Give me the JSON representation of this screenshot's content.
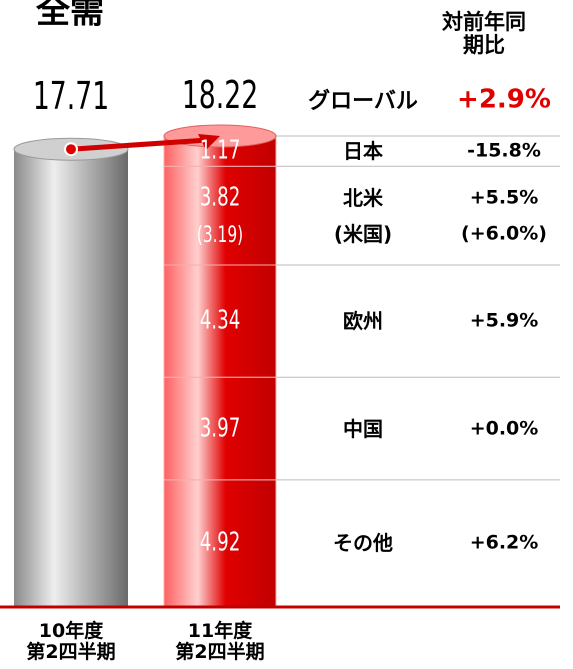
{
  "chart_data": {
    "type": "bar",
    "title": "全需",
    "change_header": "対前年同期比",
    "categories": [
      "10年度\n第2四半期",
      "11年度\n第2四半期"
    ],
    "totals": [
      17.71,
      18.22
    ],
    "total_colors": [
      "#a8a8a8",
      "#e00000"
    ],
    "global": {
      "name": "グローバル",
      "change": "+2.9%"
    },
    "segments": [
      {
        "name": "日本",
        "value": 1.17,
        "change": "-15.8%"
      },
      {
        "name": "北米",
        "value": 3.82,
        "change": "+5.5%",
        "sub": {
          "name": "(米国)",
          "value": 3.19,
          "value_label": "(3.19)",
          "change": "(+6.0%)"
        }
      },
      {
        "name": "欧州",
        "value": 4.34,
        "change": "+5.9%"
      },
      {
        "name": "中国",
        "value": 3.97,
        "change": "+0.0%"
      },
      {
        "name": "その他",
        "value": 4.92,
        "change": "+6.2%"
      }
    ],
    "ylim": [
      0,
      20
    ]
  }
}
